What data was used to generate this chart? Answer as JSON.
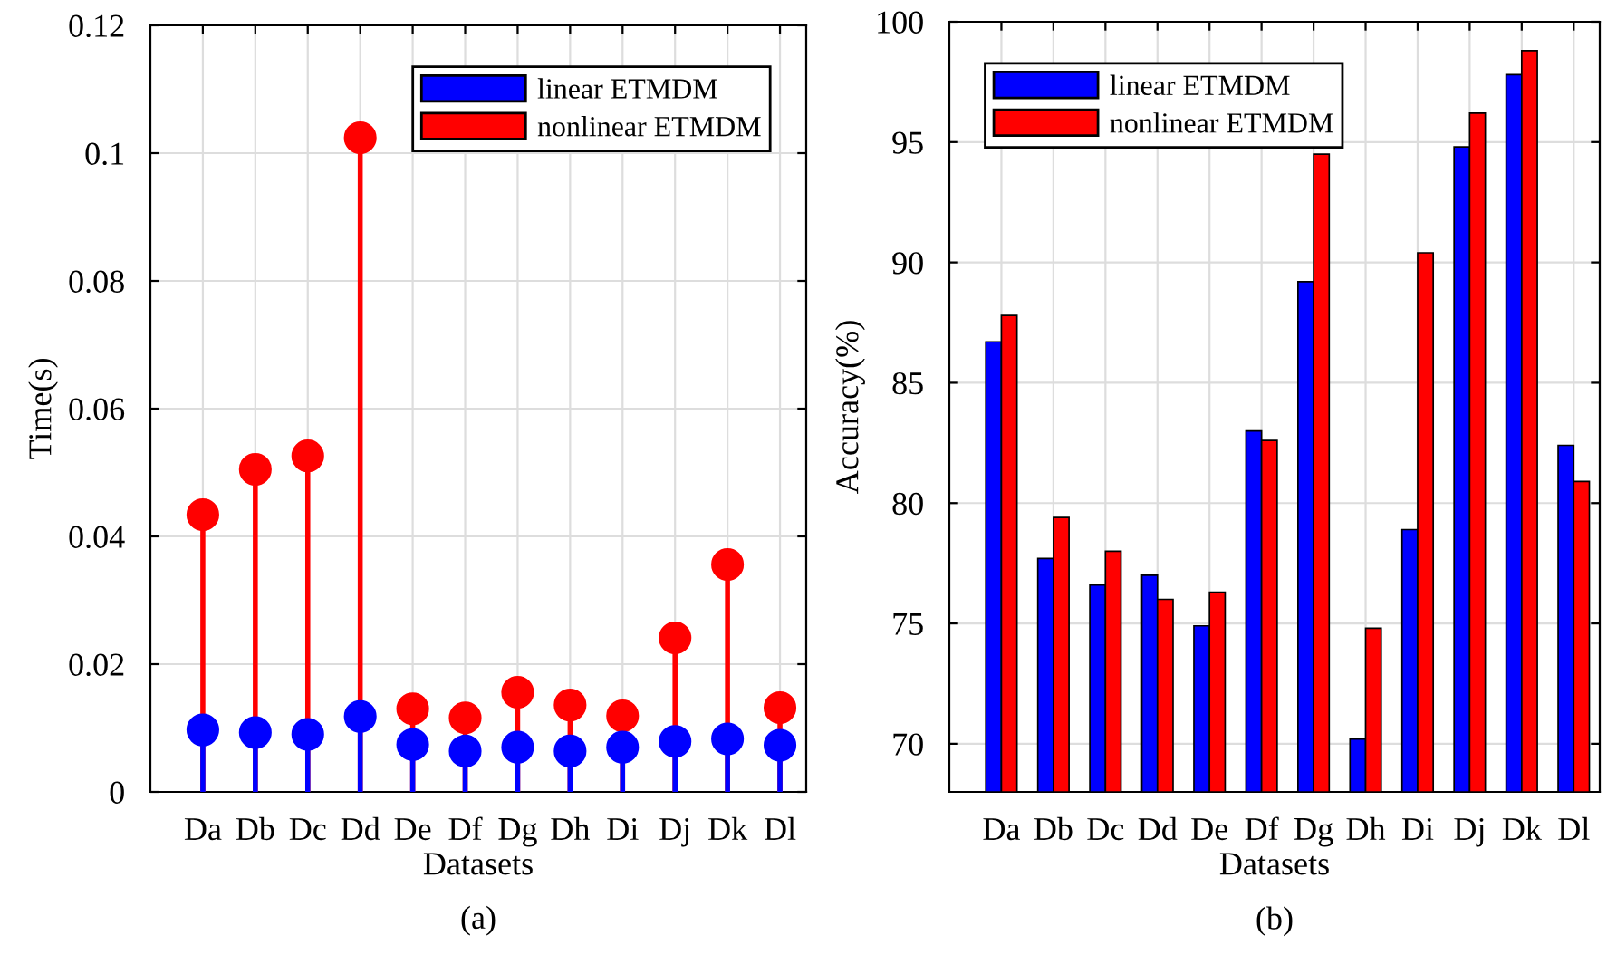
{
  "chart_data": [
    {
      "type": "lollipop",
      "xlabel": "Datasets",
      "ylabel": "Time(s)",
      "annotations": [
        "(a)"
      ],
      "categories": [
        "Da",
        "Db",
        "Dc",
        "Dd",
        "De",
        "Df",
        "Dg",
        "Dh",
        "Di",
        "Dj",
        "Dk",
        "Dl"
      ],
      "series": [
        {
          "name": "nonlinear ETMDM",
          "color": "#ff0000",
          "values": [
            0.0434,
            0.0505,
            0.0526,
            0.1024,
            0.013,
            0.0116,
            0.0156,
            0.0136,
            0.0119,
            0.0241,
            0.0356,
            0.0132
          ]
        },
        {
          "name": "linear ETMDM",
          "color": "#0000ff",
          "values": [
            0.0097,
            0.0093,
            0.009,
            0.0118,
            0.0074,
            0.0064,
            0.007,
            0.0064,
            0.007,
            0.0079,
            0.0083,
            0.0073
          ]
        }
      ],
      "ylim": [
        0,
        0.12
      ],
      "yticks": [
        0,
        0.02,
        0.04,
        0.06,
        0.08,
        0.1,
        0.12
      ],
      "grid": true,
      "legend": "top right",
      "marker": "circle"
    },
    {
      "type": "bar",
      "xlabel": "Datasets",
      "ylabel": "Accuracy(%)",
      "annotations": [
        "(b)"
      ],
      "categories": [
        "Da",
        "Db",
        "Dc",
        "Dd",
        "De",
        "Df",
        "Dg",
        "Dh",
        "Di",
        "Dj",
        "Dk",
        "Dl"
      ],
      "series": [
        {
          "name": "linear ETMDM",
          "color": "#0000ff",
          "values": [
            86.7,
            77.7,
            76.6,
            77.0,
            74.9,
            83.0,
            89.2,
            70.2,
            78.9,
            94.8,
            97.8,
            82.4
          ]
        },
        {
          "name": "nonlinear ETMDM",
          "color": "#ff0000",
          "values": [
            87.8,
            79.4,
            78.0,
            76.0,
            76.3,
            82.6,
            94.5,
            74.8,
            90.4,
            96.2,
            98.8,
            80.9
          ]
        }
      ],
      "ylim": [
        68,
        100
      ],
      "yticks": [
        70,
        75,
        80,
        85,
        90,
        95,
        100
      ],
      "grid": true,
      "legend": "top left"
    }
  ]
}
